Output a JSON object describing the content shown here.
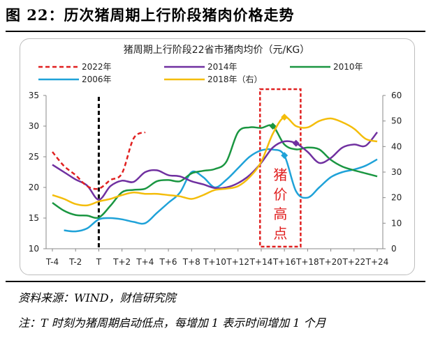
{
  "figure": {
    "title": "图 22：历次猪周期上行阶段猪肉价格走势",
    "source": "资料来源：WIND，财信研究院",
    "note": "注：T 时刻为猪周期启动低点，每增加 1 表示时间增加 1 个月"
  },
  "chart_data": {
    "type": "line",
    "title": "猪周期上行阶段22省市猪肉均价（元/KG）",
    "x": [
      -4,
      -3,
      -2,
      -1,
      0,
      1,
      2,
      3,
      4,
      5,
      6,
      7,
      8,
      9,
      10,
      11,
      12,
      13,
      14,
      15,
      16,
      17,
      18,
      19,
      20,
      21,
      22,
      23,
      24
    ],
    "x_ticks": [
      "T-4",
      "T-2",
      "T",
      "T+2",
      "T+4",
      "T+6",
      "T+8",
      "T+10",
      "T+12",
      "T+14",
      "T+16",
      "T+18",
      "T+20",
      "T+22",
      "T+24"
    ],
    "x_tick_positions": [
      -4,
      -2,
      0,
      2,
      4,
      6,
      8,
      10,
      12,
      14,
      16,
      18,
      20,
      22,
      24
    ],
    "y_left": {
      "ticks": [
        "10",
        "15",
        "20",
        "25",
        "30",
        "35"
      ],
      "range": [
        10,
        35
      ]
    },
    "y_right": {
      "ticks": [
        "0",
        "10",
        "20",
        "30",
        "40",
        "50",
        "60"
      ],
      "range": [
        0,
        60
      ]
    },
    "grid": false,
    "legend_position": "top",
    "t_marker": {
      "x": 0,
      "style": "dashed",
      "color": "#000000"
    },
    "highlight": {
      "x_range": [
        13.9,
        17.4
      ],
      "label": "猪价高点",
      "color": "#e02020"
    },
    "series": [
      {
        "name": "2022年",
        "color": "#e02020",
        "dash": true,
        "axis": "left",
        "marker_x": null,
        "x": [
          -4,
          -3,
          -2,
          -1,
          0,
          1,
          2,
          3,
          4
        ],
        "values": [
          25.8,
          23.5,
          22,
          20.2,
          19.8,
          21.2,
          22.3,
          28,
          29
        ]
      },
      {
        "name": "2014年",
        "color": "#7030a0",
        "dash": false,
        "axis": "left",
        "marker_x": 17,
        "x": [
          -4,
          -3,
          -2,
          -1,
          0,
          1,
          2,
          3,
          4,
          5,
          6,
          7,
          8,
          9,
          10,
          11,
          12,
          13,
          14,
          15,
          16,
          17,
          18,
          19,
          20,
          21,
          22,
          23,
          24
        ],
        "values": [
          23.7,
          22.5,
          21.3,
          20.3,
          18,
          20.2,
          21.1,
          20.9,
          22.5,
          22.8,
          22,
          21.8,
          21,
          20.5,
          19.9,
          20,
          20.7,
          22,
          24,
          26.5,
          27.5,
          27.2,
          25.8,
          24,
          24.8,
          26.5,
          27,
          26.8,
          29
        ]
      },
      {
        "name": "2010年",
        "color": "#1a9641",
        "dash": false,
        "axis": "left",
        "marker_x": 15,
        "x": [
          -4,
          -3,
          -2,
          -1,
          0,
          1,
          2,
          3,
          4,
          5,
          6,
          7,
          8,
          9,
          10,
          11,
          12,
          13,
          14,
          15,
          16,
          17,
          18,
          19,
          20,
          21,
          22,
          23,
          24
        ],
        "values": [
          17.5,
          16.2,
          15.5,
          15.4,
          15.1,
          17,
          19.2,
          19.6,
          19.8,
          21,
          21.2,
          21,
          22.3,
          22.7,
          23,
          24.2,
          29,
          29.8,
          29.7,
          30,
          27,
          26.2,
          26.5,
          26.2,
          24.5,
          23.4,
          22.8,
          22.3,
          21.8
        ]
      },
      {
        "name": "2006年",
        "color": "#1fa2d8",
        "dash": false,
        "axis": "right",
        "marker_x": 16,
        "x": [
          -3,
          -2,
          -1,
          0,
          1,
          2,
          3,
          4,
          5,
          6,
          7,
          8,
          9,
          10,
          11,
          12,
          13,
          14,
          15,
          16,
          17,
          18,
          19,
          20,
          21,
          22,
          23,
          24
        ],
        "values": [
          7.2,
          6.8,
          8,
          11.5,
          12,
          11.5,
          10.5,
          10,
          14,
          18,
          22,
          30,
          28,
          24,
          27,
          31.5,
          36,
          38.5,
          38.8,
          36.5,
          22.5,
          20,
          24,
          28,
          30,
          31,
          32.5,
          35
        ]
      },
      {
        "name": "2018年（右）",
        "color": "#f4bd0a",
        "dash": false,
        "axis": "right",
        "marker_x": 16,
        "x": [
          -4,
          -3,
          -2,
          -1,
          0,
          1,
          2,
          3,
          4,
          5,
          6,
          7,
          8,
          9,
          10,
          11,
          12,
          13,
          14,
          15,
          16,
          17,
          18,
          19,
          20,
          21,
          22,
          23,
          24
        ],
        "values": [
          21,
          19.5,
          17.5,
          17,
          18.5,
          19.5,
          21,
          22,
          21.5,
          21.5,
          21,
          20.5,
          19.5,
          21,
          23,
          23.5,
          24.5,
          28,
          34,
          45,
          51.5,
          48,
          47.5,
          50,
          51,
          49.5,
          47,
          43,
          42
        ]
      }
    ]
  }
}
